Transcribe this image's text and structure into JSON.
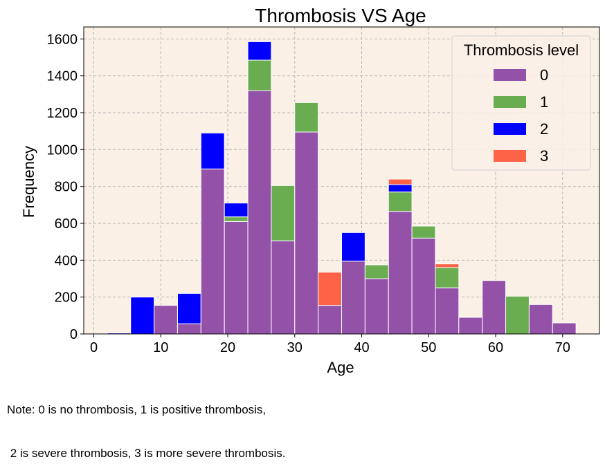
{
  "chart_data": {
    "type": "bar",
    "stacked": true,
    "title": "Thrombosis VS Age",
    "xlabel": "Age",
    "ylabel": "Frequency",
    "xlim": [
      -1.5,
      75.5
    ],
    "ylim": [
      0,
      1665
    ],
    "xticks": [
      0,
      10,
      20,
      30,
      40,
      50,
      60,
      70
    ],
    "yticks": [
      0,
      200,
      400,
      600,
      800,
      1000,
      1200,
      1400,
      1600
    ],
    "grid": true,
    "background": "#faf0e6",
    "legend": {
      "title": "Thrombosis level",
      "position": "top-right"
    },
    "bin_edges": [
      2,
      5.5,
      9,
      12.5,
      16,
      19.5,
      23,
      26.5,
      30,
      33.5,
      37,
      40.5,
      44,
      47.5,
      51,
      54.5,
      58,
      61.5,
      65,
      68.5,
      72
    ],
    "series": [
      {
        "name": "0",
        "color": "#9352a8",
        "values": [
          0,
          0,
          155,
          55,
          895,
          610,
          1320,
          505,
          1095,
          155,
          395,
          300,
          665,
          520,
          250,
          90,
          290,
          0,
          160,
          60
        ]
      },
      {
        "name": "1",
        "color": "#6aac50",
        "values": [
          0,
          0,
          0,
          0,
          0,
          25,
          165,
          300,
          160,
          0,
          0,
          75,
          105,
          65,
          110,
          0,
          0,
          205,
          0,
          0
        ]
      },
      {
        "name": "2",
        "color": "#0000ff",
        "values": [
          5,
          200,
          0,
          165,
          195,
          75,
          100,
          0,
          0,
          0,
          155,
          0,
          40,
          0,
          0,
          0,
          0,
          0,
          0,
          0
        ]
      },
      {
        "name": "3",
        "color": "#ff6347",
        "values": [
          0,
          0,
          0,
          0,
          0,
          0,
          0,
          0,
          0,
          180,
          0,
          0,
          30,
          0,
          20,
          0,
          0,
          0,
          0,
          0
        ]
      }
    ]
  },
  "note": {
    "line1": "Note: 0 is no thrombosis, 1 is positive thrombosis,",
    "line2": " 2 is severe thrombosis, 3 is more severe thrombosis."
  }
}
